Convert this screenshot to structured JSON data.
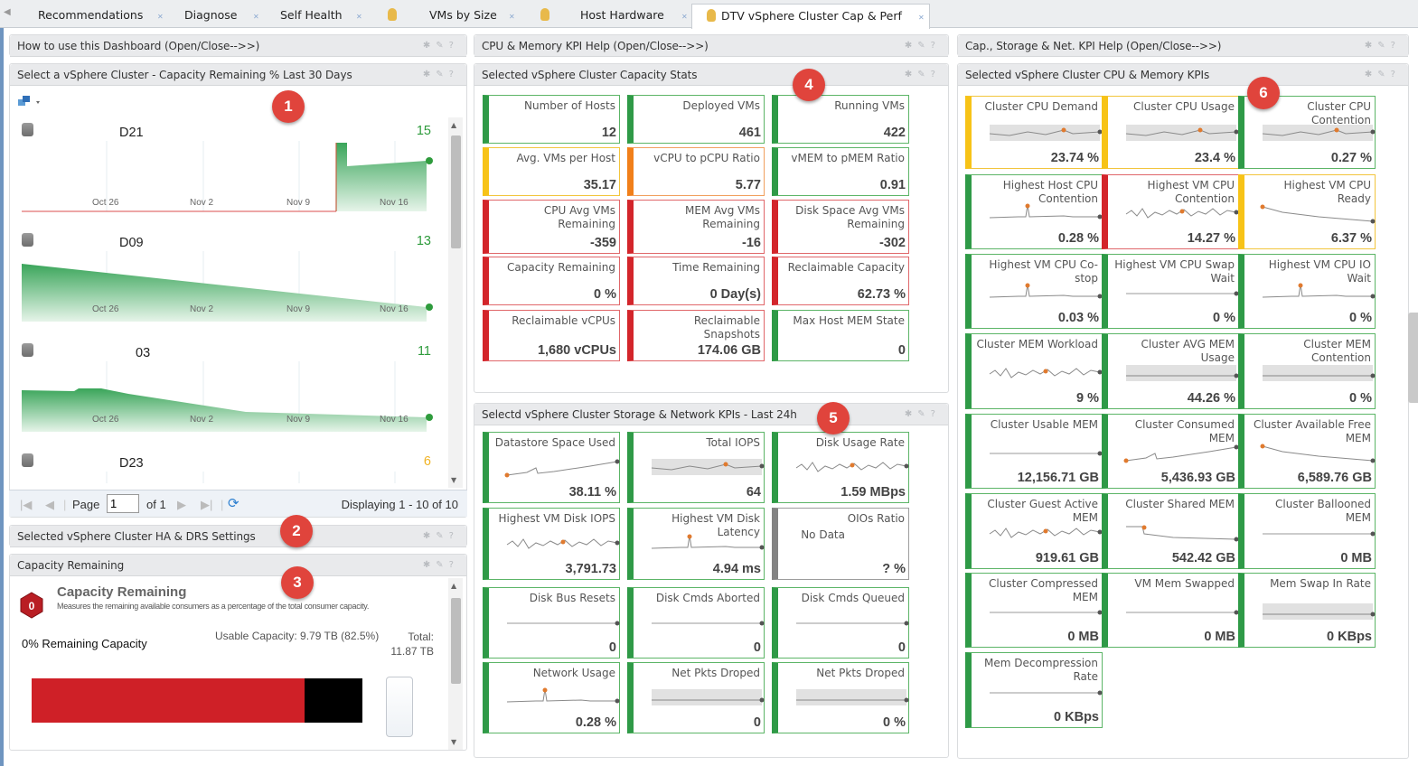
{
  "tabs": [
    {
      "label": "Recommendations",
      "active": false
    },
    {
      "label": "Diagnose",
      "active": false
    },
    {
      "label": "Self Health",
      "active": false
    },
    {
      "label": "VMs by Size",
      "active": false
    },
    {
      "label": "Host Hardware",
      "active": false
    },
    {
      "label": "DTV vSphere Cluster Cap & Perf",
      "active": true
    }
  ],
  "left": {
    "help_title": "How to use this Dashboard (Open/Close-->>)",
    "cluster_panel_title": "Select a vSphere Cluster - Capacity Remaining % Last 30 Days",
    "badge": "1",
    "clusters": [
      {
        "name": "D21",
        "value": "15",
        "value_color": "#2e9b3c"
      },
      {
        "name": "D09",
        "value": "13",
        "value_color": "#2e9b3c"
      },
      {
        "name": "03",
        "value": "11",
        "value_color": "#2e9b3c"
      },
      {
        "name": "D23",
        "value": "6",
        "value_color": "#f0b323"
      }
    ],
    "x_ticks": [
      "Oct 26",
      "Nov 2",
      "Nov 9",
      "Nov 16"
    ],
    "pager": {
      "page_label": "Page",
      "page_value": "1",
      "of_label": "of 1",
      "displaying": "Displaying 1 - 10 of 10"
    },
    "ha_title": "Selected vSphere Cluster HA & DRS Settings",
    "ha_badge": "2",
    "capacity_panel_title": "Capacity Remaining",
    "capacity_badge": "3",
    "capacity": {
      "heading": "Capacity Remaining",
      "description": "Measures the remaining available consumers as a percentage of the total consumer capacity.",
      "remaining_label": "0% Remaining Capacity",
      "usable": "Usable Capacity: 9.79 TB (82.5%)",
      "total": "Total: 11.87 TB",
      "alert_icon_value": "0",
      "bar_used_pct": 82.5,
      "bar_colors": {
        "used": "#cf2027",
        "overhead": "#000000"
      }
    }
  },
  "middle": {
    "help_title": "CPU & Memory KPI Help (Open/Close-->>)",
    "capacity_stats_title": "Selected vSphere Cluster Capacity Stats",
    "capacity_badge": "4",
    "capacity_tiles": [
      {
        "title": "Number of Hosts",
        "value": "12",
        "status": "g"
      },
      {
        "title": "Deployed VMs",
        "value": "461",
        "status": "g"
      },
      {
        "title": "Running VMs",
        "value": "422",
        "status": "g"
      },
      {
        "title": "Avg. VMs per Host",
        "value": "35.17",
        "status": "y"
      },
      {
        "title": "vCPU to pCPU Ratio",
        "value": "5.77",
        "status": "o"
      },
      {
        "title": "vMEM to pMEM Ratio",
        "value": "0.91",
        "status": "g"
      },
      {
        "title": "CPU Avg VMs Remaining",
        "value": "-359",
        "status": "r"
      },
      {
        "title": "MEM Avg VMs Remaining",
        "value": "-16",
        "status": "r"
      },
      {
        "title": "Disk Space Avg VMs Remaining",
        "value": "-302",
        "status": "r"
      },
      {
        "title": "Capacity Remaining",
        "value": "0 %",
        "status": "r"
      },
      {
        "title": "Time Remaining",
        "value": "0 Day(s)",
        "status": "r"
      },
      {
        "title": "Reclaimable Capacity",
        "value": "62.73 %",
        "status": "r"
      },
      {
        "title": "Reclaimable vCPUs",
        "value": "1,680 vCPUs",
        "status": "r"
      },
      {
        "title": "Reclaimable Snapshots",
        "value": "174.06 GB",
        "status": "r"
      },
      {
        "title": "Max Host MEM State",
        "value": "0",
        "status": "g"
      }
    ],
    "storage_title": "Selectd vSphere Cluster Storage & Network KPIs - Last 24h",
    "storage_badge": "5",
    "storage_tiles": [
      {
        "title": "Datastore Space Used",
        "value": "38.11 %",
        "status": "g"
      },
      {
        "title": "Total IOPS",
        "value": "64",
        "status": "g"
      },
      {
        "title": "Disk Usage Rate",
        "value": "1.59 MBps",
        "status": "g"
      },
      {
        "title": "Highest VM Disk IOPS",
        "value": "3,791.73",
        "status": "g"
      },
      {
        "title": "Highest VM Disk Latency",
        "value": "4.94 ms",
        "status": "g"
      },
      {
        "title": "OIOs Ratio",
        "value": "? %",
        "status": "n",
        "note": "No Data"
      },
      {
        "title": "Disk Bus Resets",
        "value": "0",
        "status": "g"
      },
      {
        "title": "Disk Cmds Aborted",
        "value": "0",
        "status": "g"
      },
      {
        "title": "Disk Cmds Queued",
        "value": "0",
        "status": "g"
      },
      {
        "title": "Network Usage",
        "value": "0.28 %",
        "status": "g"
      },
      {
        "title": "Net Pkts Droped",
        "value": "0",
        "status": "g"
      },
      {
        "title": "Net Pkts Droped",
        "value": "0 %",
        "status": "g"
      }
    ]
  },
  "right": {
    "help_title": "Cap., Storage & Net. KPI Help (Open/Close-->>)",
    "kpi_title": "Selected vSphere Cluster CPU & Memory KPIs",
    "badge": "6",
    "tiles": [
      {
        "title": "Cluster CPU Demand",
        "value": "23.74 %",
        "status": "y"
      },
      {
        "title": "Cluster CPU Usage",
        "value": "23.4 %",
        "status": "y"
      },
      {
        "title": "Cluster CPU Contention",
        "value": "0.27 %",
        "status": "g"
      },
      {
        "title": "Highest Host CPU Contention",
        "value": "0.28 %",
        "status": "g"
      },
      {
        "title": "Highest VM CPU Contention",
        "value": "14.27 %",
        "status": "r"
      },
      {
        "title": "Highest VM CPU Ready",
        "value": "6.37 %",
        "status": "y"
      },
      {
        "title": "Highest VM CPU Co-stop",
        "value": "0.03 %",
        "status": "g"
      },
      {
        "title": "Highest VM CPU Swap Wait",
        "value": "0 %",
        "status": "g"
      },
      {
        "title": "Highest VM CPU IO Wait",
        "value": "0 %",
        "status": "g"
      },
      {
        "title": "Cluster MEM Workload",
        "value": "9 %",
        "status": "g"
      },
      {
        "title": "Cluster AVG MEM Usage",
        "value": "44.26 %",
        "status": "g"
      },
      {
        "title": "Cluster MEM Contention",
        "value": "0 %",
        "status": "g"
      },
      {
        "title": "Cluster Usable MEM",
        "value": "12,156.71 GB",
        "status": "g"
      },
      {
        "title": "Cluster Consumed MEM",
        "value": "5,436.93 GB",
        "status": "g"
      },
      {
        "title": "Cluster Available Free MEM",
        "value": "6,589.76 GB",
        "status": "g"
      },
      {
        "title": "Cluster Guest Active MEM",
        "value": "919.61 GB",
        "status": "g"
      },
      {
        "title": "Cluster Shared MEM",
        "value": "542.42 GB",
        "status": "g"
      },
      {
        "title": "Cluster Ballooned MEM",
        "value": "0 MB",
        "status": "g"
      },
      {
        "title": "Cluster Compressed MEM",
        "value": "0 MB",
        "status": "g"
      },
      {
        "title": "VM Mem Swapped",
        "value": "0 MB",
        "status": "g"
      },
      {
        "title": "Mem Swap In Rate",
        "value": "0 KBps",
        "status": "g"
      },
      {
        "title": "Mem Decompression Rate",
        "value": "0 KBps",
        "status": "g"
      }
    ]
  },
  "panel_tools": "minimize-icon edit-icon help-icon",
  "colors": {
    "green": "#2f9a47",
    "yellow": "#f7c317",
    "orange": "#f17f1a",
    "red": "#d3252b",
    "gray": "#838383",
    "badge": "#e0443c"
  }
}
